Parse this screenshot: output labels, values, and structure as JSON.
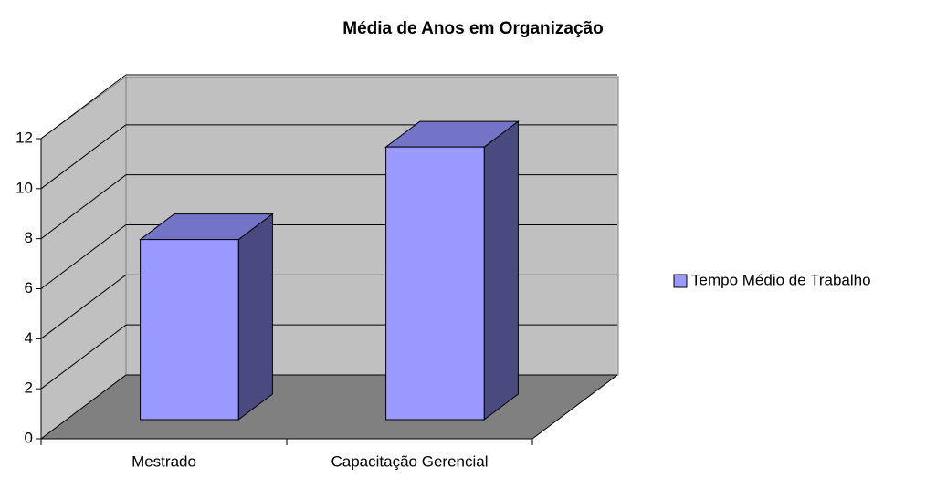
{
  "chart_data": {
    "type": "bar3d",
    "title": "Média de Anos em Organização",
    "categories": [
      "Mestrado",
      "Capacitação Gerencial"
    ],
    "series": [
      {
        "name": "Tempo Médio de Trabalho",
        "color": "#9999ff",
        "values": [
          7.2,
          10.9
        ]
      }
    ],
    "ylim": [
      0,
      12
    ],
    "yticks": [
      0,
      2,
      4,
      6,
      8,
      10,
      12
    ],
    "grid": true,
    "legend": "right"
  }
}
